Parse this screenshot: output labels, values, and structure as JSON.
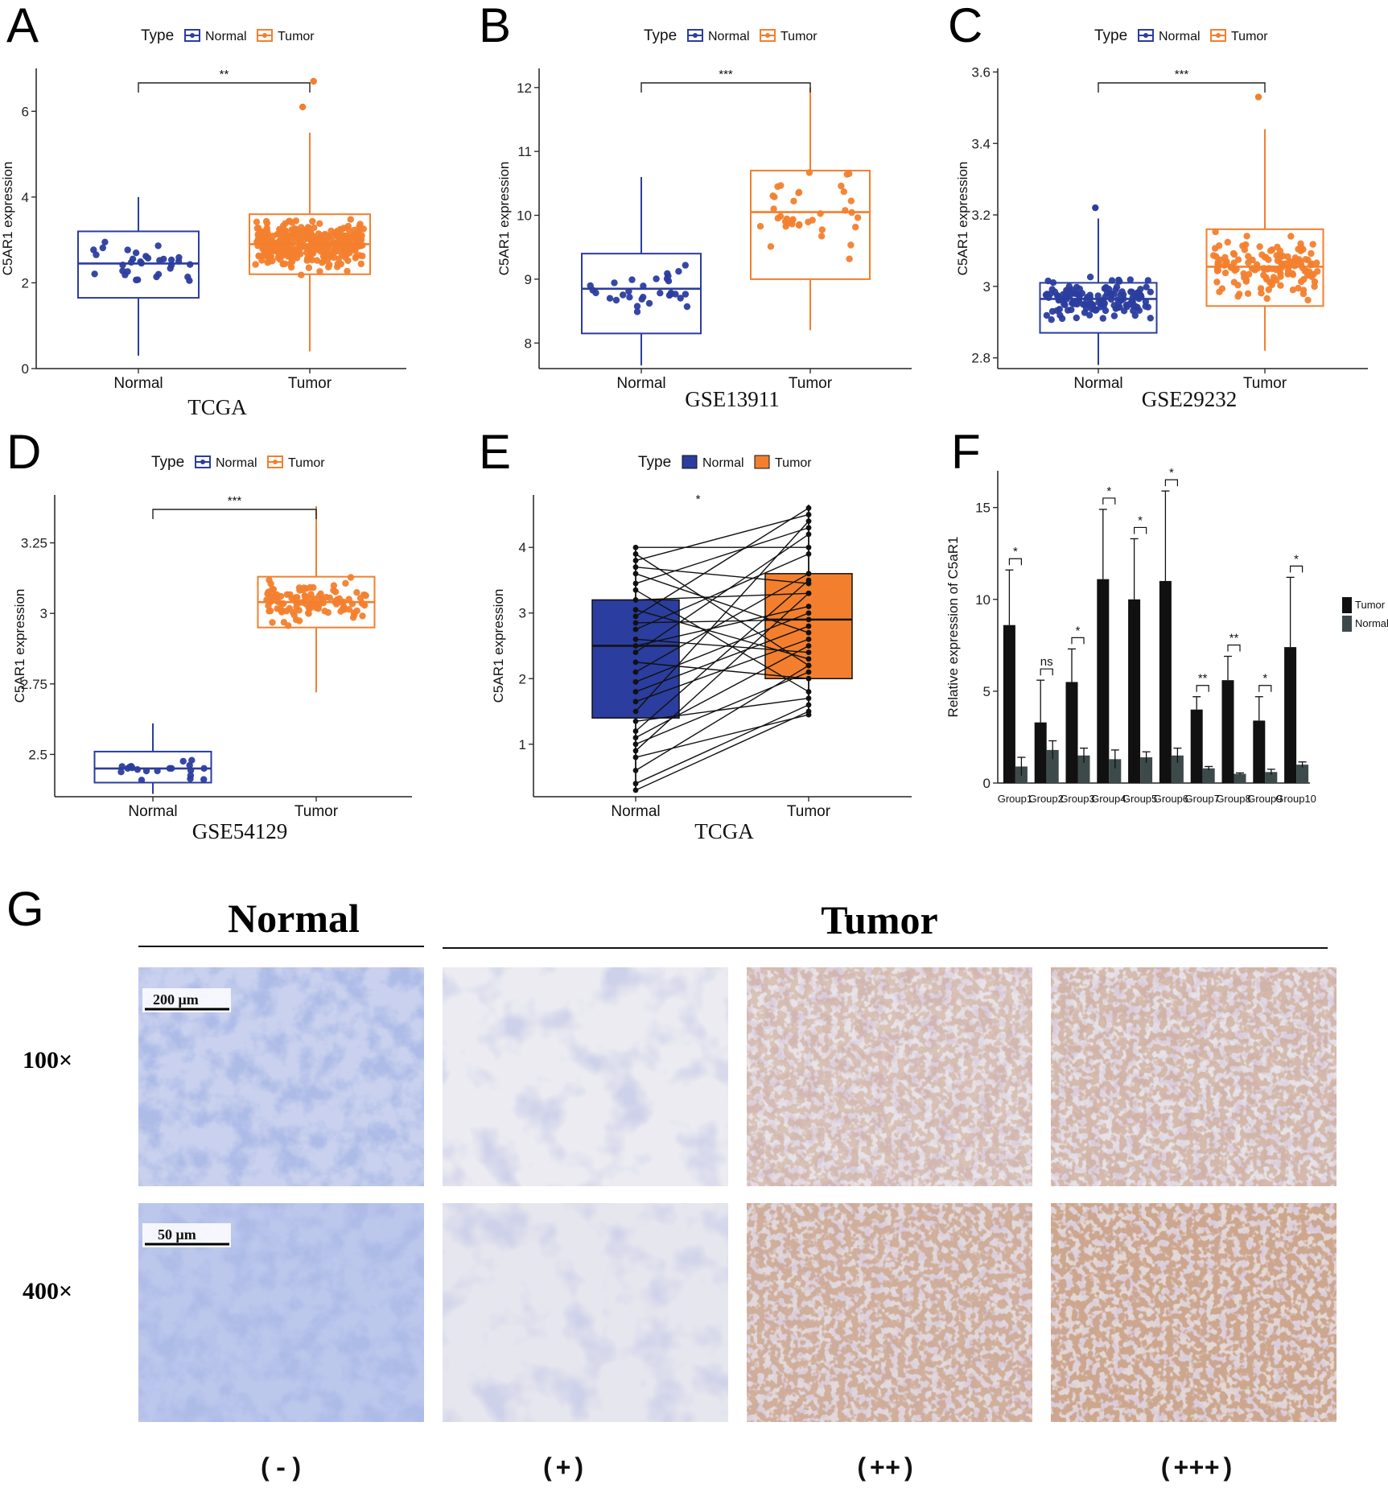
{
  "colors": {
    "normal": "#2b3d9e",
    "tumor": "#f37f2e",
    "bar_tumor": "#111111",
    "bar_normal": "#3d4a4a",
    "micro_normal": "#9aa8d6",
    "micro_tumor_light": "#e4e3ec",
    "micro_tumor_brown": "#b07a5a"
  },
  "legend": {
    "title": "Type",
    "normal": "Normal",
    "tumor": "Tumor"
  },
  "chart_data": [
    {
      "panel": "A",
      "type": "box",
      "dataset": "TCGA",
      "ylabel": "C5AR1 expression",
      "ylim": [
        0,
        7
      ],
      "yticks": [
        0,
        2,
        4,
        6
      ],
      "significance": "**",
      "categories": [
        "Normal",
        "Tumor"
      ],
      "series": [
        {
          "name": "Normal",
          "box": {
            "q1": 1.65,
            "median": 2.45,
            "q3": 3.2,
            "min": 0.3,
            "max": 4.0
          },
          "n": 32
        },
        {
          "name": "Tumor",
          "box": {
            "q1": 2.2,
            "median": 2.9,
            "q3": 3.6,
            "min": 0.4,
            "max": 5.5
          },
          "n": 375,
          "outliers": [
            6.1,
            6.7
          ]
        }
      ]
    },
    {
      "panel": "B",
      "type": "box",
      "dataset": "GSE13911",
      "ylabel": "C5AR1 expression",
      "ylim": [
        7.6,
        12.3
      ],
      "yticks": [
        8,
        9,
        10,
        11,
        12
      ],
      "significance": "***",
      "categories": [
        "Normal",
        "Tumor"
      ],
      "series": [
        {
          "name": "Normal",
          "box": {
            "q1": 8.15,
            "median": 8.85,
            "q3": 9.4,
            "min": 7.65,
            "max": 10.6
          },
          "n": 31
        },
        {
          "name": "Tumor",
          "box": {
            "q1": 9.0,
            "median": 10.05,
            "q3": 10.7,
            "min": 8.2,
            "max": 12.0
          },
          "n": 38
        }
      ]
    },
    {
      "panel": "C",
      "type": "box",
      "dataset": "GSE29232",
      "ylabel": "C5AR1 expression",
      "ylim": [
        2.77,
        3.61
      ],
      "yticks": [
        2.8,
        3.0,
        3.2,
        3.4,
        3.6
      ],
      "significance": "***",
      "categories": [
        "Normal",
        "Tumor"
      ],
      "series": [
        {
          "name": "Normal",
          "box": {
            "q1": 2.87,
            "median": 2.965,
            "q3": 3.01,
            "min": 2.78,
            "max": 3.19
          },
          "n": 140,
          "outliers": [
            3.22
          ]
        },
        {
          "name": "Tumor",
          "box": {
            "q1": 2.945,
            "median": 3.055,
            "q3": 3.16,
            "min": 2.82,
            "max": 3.44
          },
          "n": 140,
          "outliers": [
            3.53
          ]
        }
      ]
    },
    {
      "panel": "D",
      "type": "box",
      "dataset": "GSE54129",
      "ylabel": "C5AR1 expression",
      "ylim": [
        2.35,
        3.42
      ],
      "yticks": [
        2.5,
        2.75,
        3.0,
        3.25
      ],
      "significance": "***",
      "categories": [
        "Normal",
        "Tumor"
      ],
      "series": [
        {
          "name": "Normal",
          "box": {
            "q1": 2.4,
            "median": 2.45,
            "q3": 2.51,
            "min": 2.36,
            "max": 2.61
          },
          "n": 20
        },
        {
          "name": "Tumor",
          "box": {
            "q1": 2.95,
            "median": 3.04,
            "q3": 3.13,
            "min": 2.72,
            "max": 3.38
          },
          "n": 110
        }
      ]
    },
    {
      "panel": "E",
      "type": "paired-box",
      "dataset": "TCGA",
      "ylabel": "C5AR1 expression",
      "ylim": [
        0.2,
        4.8
      ],
      "yticks": [
        1,
        2,
        3,
        4
      ],
      "significance": "*",
      "categories": [
        "Normal",
        "Tumor"
      ],
      "series": [
        {
          "name": "Normal",
          "box": {
            "q1": 1.4,
            "median": 2.5,
            "q3": 3.2,
            "min": 0.3,
            "max": 4.0
          }
        },
        {
          "name": "Tumor",
          "box": {
            "q1": 2.0,
            "median": 2.9,
            "q3": 3.6,
            "min": 1.45,
            "max": 4.65
          }
        }
      ],
      "pairs": [
        [
          0.3,
          1.5
        ],
        [
          0.4,
          1.6
        ],
        [
          0.6,
          2.2
        ],
        [
          0.8,
          1.45
        ],
        [
          0.9,
          3.3
        ],
        [
          1.0,
          2.1
        ],
        [
          1.1,
          2.5
        ],
        [
          1.2,
          3.5
        ],
        [
          1.35,
          1.7
        ],
        [
          1.5,
          4.4
        ],
        [
          1.65,
          2.6
        ],
        [
          1.8,
          2.8
        ],
        [
          1.95,
          3.0
        ],
        [
          2.1,
          3.6
        ],
        [
          2.25,
          2.0
        ],
        [
          2.4,
          4.2
        ],
        [
          2.5,
          3.1
        ],
        [
          2.6,
          2.4
        ],
        [
          2.75,
          3.9
        ],
        [
          2.85,
          2.9
        ],
        [
          2.95,
          4.6
        ],
        [
          3.05,
          2.3
        ],
        [
          3.2,
          3.3
        ],
        [
          3.35,
          1.8
        ],
        [
          3.45,
          4.3
        ],
        [
          3.6,
          2.7
        ],
        [
          3.7,
          3.45
        ],
        [
          3.8,
          4.5
        ],
        [
          3.9,
          2.2
        ],
        [
          4.0,
          4.0
        ]
      ]
    },
    {
      "panel": "F",
      "type": "bar",
      "ylabel": "Relative expression of C5aR1",
      "ylim": [
        0,
        17
      ],
      "yticks": [
        0,
        5,
        10,
        15
      ],
      "categories": [
        "Group1",
        "Group2",
        "Group3",
        "Group4",
        "Group5",
        "Group6",
        "Group7",
        "Group8",
        "Group9",
        "Group10"
      ],
      "series": [
        {
          "name": "Tumor",
          "values": [
            8.6,
            3.3,
            5.5,
            11.1,
            10.0,
            11.0,
            4.0,
            5.6,
            3.4,
            7.4
          ],
          "errors": [
            3.0,
            2.3,
            1.8,
            3.8,
            3.3,
            4.9,
            0.7,
            1.3,
            1.3,
            3.8
          ]
        },
        {
          "name": "Normal",
          "values": [
            0.9,
            1.8,
            1.5,
            1.3,
            1.4,
            1.5,
            0.8,
            0.5,
            0.6,
            1.0
          ],
          "errors": [
            0.5,
            0.5,
            0.4,
            0.5,
            0.3,
            0.4,
            0.1,
            0.05,
            0.15,
            0.15
          ]
        }
      ],
      "significance": [
        "*",
        "ns",
        "*",
        "*",
        "*",
        "*",
        "**",
        "**",
        "*",
        "*"
      ]
    }
  ],
  "panelG": {
    "letter": "G",
    "normal_header": "Normal",
    "tumor_header": "Tumor",
    "rows": [
      "100×",
      "400×"
    ],
    "grades": [
      "(-)",
      "(+)",
      "(++)",
      "(+++)"
    ],
    "scale_bars": [
      "200 μm",
      "50 μm"
    ]
  }
}
